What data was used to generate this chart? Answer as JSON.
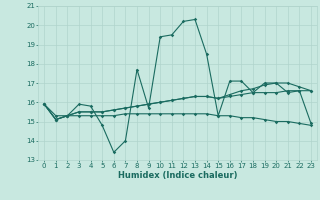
{
  "title": "",
  "xlabel": "Humidex (Indice chaleur)",
  "x_ticks": [
    0,
    1,
    2,
    3,
    4,
    5,
    6,
    7,
    8,
    9,
    10,
    11,
    12,
    13,
    14,
    15,
    16,
    17,
    18,
    19,
    20,
    21,
    22,
    23
  ],
  "x_tick_labels": [
    "0",
    "1",
    "2",
    "3",
    "4",
    "5",
    "6",
    "7",
    "8",
    "9",
    "10",
    "11",
    "12",
    "13",
    "14",
    "15",
    "16",
    "17",
    "18",
    "19",
    "20",
    "21",
    "22",
    "23"
  ],
  "ylim": [
    13,
    21
  ],
  "yticks": [
    13,
    14,
    15,
    16,
    17,
    18,
    19,
    20,
    21
  ],
  "background_color": "#c8e8e0",
  "grid_color": "#b0d4cc",
  "line_color": "#1a6b60",
  "series": [
    [
      15.9,
      15.1,
      15.3,
      15.9,
      15.8,
      14.8,
      13.4,
      14.0,
      17.7,
      15.7,
      19.4,
      19.5,
      20.2,
      20.3,
      18.5,
      15.3,
      17.1,
      17.1,
      16.5,
      17.0,
      17.0,
      16.5,
      16.6,
      14.9
    ],
    [
      15.9,
      15.1,
      15.3,
      15.5,
      15.5,
      15.5,
      15.6,
      15.7,
      15.8,
      15.9,
      16.0,
      16.1,
      16.2,
      16.3,
      16.3,
      16.2,
      16.3,
      16.4,
      16.5,
      16.5,
      16.5,
      16.6,
      16.6,
      16.6
    ],
    [
      15.9,
      15.3,
      15.3,
      15.3,
      15.3,
      15.3,
      15.3,
      15.4,
      15.4,
      15.4,
      15.4,
      15.4,
      15.4,
      15.4,
      15.4,
      15.3,
      15.3,
      15.2,
      15.2,
      15.1,
      15.0,
      15.0,
      14.9,
      14.8
    ],
    [
      15.9,
      15.1,
      15.3,
      15.5,
      15.5,
      15.5,
      15.6,
      15.7,
      15.8,
      15.9,
      16.0,
      16.1,
      16.2,
      16.3,
      16.3,
      16.2,
      16.4,
      16.6,
      16.7,
      16.9,
      17.0,
      17.0,
      16.8,
      16.6
    ]
  ],
  "marker_style": "D",
  "marker_size": 1.8,
  "line_width": 0.8,
  "tick_fontsize": 5.0,
  "xlabel_fontsize": 6.0
}
